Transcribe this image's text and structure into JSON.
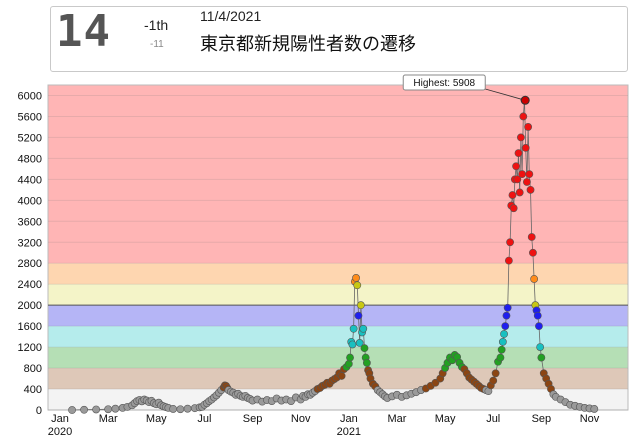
{
  "header": {
    "rank": "14",
    "rank_change": "-1th",
    "count_change": "-11",
    "date": "11/4/2021",
    "title": "東京都新規陽性者数の遷移"
  },
  "chart_data": {
    "type": "scatter",
    "title": "東京都新規陽性者数の遷移",
    "xlabel": "",
    "ylabel": "",
    "ylim": [
      0,
      6200
    ],
    "y_ticks": [
      "0",
      "400",
      "800",
      "1200",
      "1600",
      "2000",
      "2400",
      "2800",
      "3200",
      "3600",
      "4000",
      "4400",
      "4800",
      "5200",
      "5600",
      "6000"
    ],
    "x_ticks": [
      {
        "label": "Jan",
        "sub": "2020",
        "month": 0
      },
      {
        "label": "Mar",
        "sub": "",
        "month": 2
      },
      {
        "label": "May",
        "sub": "",
        "month": 4
      },
      {
        "label": "Jul",
        "sub": "",
        "month": 6
      },
      {
        "label": "Sep",
        "sub": "",
        "month": 8
      },
      {
        "label": "Nov",
        "sub": "",
        "month": 10
      },
      {
        "label": "Jan",
        "sub": "2021",
        "month": 12
      },
      {
        "label": "Mar",
        "sub": "",
        "month": 14
      },
      {
        "label": "May",
        "sub": "",
        "month": 16
      },
      {
        "label": "Jul",
        "sub": "",
        "month": 18
      },
      {
        "label": "Sep",
        "sub": "",
        "month": 20
      },
      {
        "label": "Nov",
        "sub": "",
        "month": 22
      }
    ],
    "bands": [
      {
        "from": 0,
        "to": 400,
        "color": "#f3f3f3"
      },
      {
        "from": 400,
        "to": 800,
        "color": "#dec8b8"
      },
      {
        "from": 800,
        "to": 1200,
        "color": "#b5dfb5"
      },
      {
        "from": 1200,
        "to": 1600,
        "color": "#b5ecec"
      },
      {
        "from": 1600,
        "to": 2000,
        "color": "#b5b5f6"
      },
      {
        "from": 2000,
        "to": 2400,
        "color": "#f4f4c8"
      },
      {
        "from": 2400,
        "to": 2800,
        "color": "#fed6b0"
      },
      {
        "from": 2800,
        "to": 6200,
        "color": "#ffb5b5"
      }
    ],
    "point_colors": [
      {
        "max": 400,
        "color": "#9a9a9a"
      },
      {
        "max": 800,
        "color": "#8b4513"
      },
      {
        "max": 1200,
        "color": "#22a022"
      },
      {
        "max": 1600,
        "color": "#19c0c0"
      },
      {
        "max": 2000,
        "color": "#1f1fee"
      },
      {
        "max": 2400,
        "color": "#c8c814"
      },
      {
        "max": 2800,
        "color": "#ff8c1a"
      },
      {
        "max": 999999,
        "color": "#ee1111"
      }
    ],
    "highlight": {
      "label": "Highest: 5908",
      "month": 19.33,
      "value": 5908
    },
    "series": [
      {
        "values": [
          [
            0.5,
            0
          ],
          [
            1.0,
            5
          ],
          [
            1.5,
            10
          ],
          [
            2.0,
            15
          ],
          [
            2.3,
            25
          ],
          [
            2.6,
            40
          ],
          [
            2.8,
            60
          ],
          [
            3.0,
            90
          ],
          [
            3.1,
            130
          ],
          [
            3.2,
            170
          ],
          [
            3.3,
            190
          ],
          [
            3.4,
            165
          ],
          [
            3.5,
            200
          ],
          [
            3.6,
            180
          ],
          [
            3.7,
            150
          ],
          [
            3.8,
            175
          ],
          [
            3.9,
            130
          ],
          [
            4.0,
            110
          ],
          [
            4.1,
            140
          ],
          [
            4.2,
            90
          ],
          [
            4.3,
            70
          ],
          [
            4.4,
            55
          ],
          [
            4.5,
            40
          ],
          [
            4.7,
            20
          ],
          [
            5.0,
            15
          ],
          [
            5.3,
            25
          ],
          [
            5.6,
            35
          ],
          [
            5.8,
            50
          ],
          [
            5.9,
            60
          ],
          [
            6.0,
            100
          ],
          [
            6.1,
            130
          ],
          [
            6.2,
            170
          ],
          [
            6.3,
            200
          ],
          [
            6.4,
            240
          ],
          [
            6.5,
            280
          ],
          [
            6.6,
            330
          ],
          [
            6.7,
            380
          ],
          [
            6.8,
            430
          ],
          [
            6.85,
            470
          ],
          [
            6.9,
            460
          ],
          [
            6.95,
            420
          ],
          [
            7.0,
            380
          ],
          [
            7.1,
            350
          ],
          [
            7.2,
            330
          ],
          [
            7.3,
            290
          ],
          [
            7.4,
            310
          ],
          [
            7.5,
            270
          ],
          [
            7.6,
            250
          ],
          [
            7.7,
            270
          ],
          [
            7.8,
            230
          ],
          [
            7.9,
            210
          ],
          [
            8.0,
            180
          ],
          [
            8.2,
            200
          ],
          [
            8.4,
            160
          ],
          [
            8.6,
            190
          ],
          [
            8.8,
            170
          ],
          [
            9.0,
            220
          ],
          [
            9.2,
            180
          ],
          [
            9.4,
            200
          ],
          [
            9.6,
            170
          ],
          [
            9.8,
            240
          ],
          [
            10.0,
            200
          ],
          [
            10.1,
            270
          ],
          [
            10.2,
            250
          ],
          [
            10.3,
            300
          ],
          [
            10.4,
            290
          ],
          [
            10.5,
            330
          ],
          [
            10.6,
            360
          ],
          [
            10.7,
            400
          ],
          [
            10.8,
            420
          ],
          [
            10.9,
            460
          ],
          [
            11.0,
            480
          ],
          [
            11.1,
            520
          ],
          [
            11.2,
            500
          ],
          [
            11.3,
            560
          ],
          [
            11.4,
            590
          ],
          [
            11.5,
            620
          ],
          [
            11.6,
            700
          ],
          [
            11.7,
            650
          ],
          [
            11.8,
            780
          ],
          [
            11.9,
            820
          ],
          [
            12.0,
            880
          ],
          [
            12.05,
            1000
          ],
          [
            12.1,
            1300
          ],
          [
            12.15,
            1250
          ],
          [
            12.2,
            1550
          ],
          [
            12.25,
            2450
          ],
          [
            12.3,
            2520
          ],
          [
            12.35,
            2380
          ],
          [
            12.4,
            1800
          ],
          [
            12.45,
            1280
          ],
          [
            12.5,
            2000
          ],
          [
            12.55,
            1480
          ],
          [
            12.6,
            1550
          ],
          [
            12.65,
            1180
          ],
          [
            12.7,
            1000
          ],
          [
            12.75,
            900
          ],
          [
            12.8,
            760
          ],
          [
            12.85,
            700
          ],
          [
            12.9,
            600
          ],
          [
            13.0,
            500
          ],
          [
            13.1,
            450
          ],
          [
            13.2,
            380
          ],
          [
            13.3,
            340
          ],
          [
            13.4,
            300
          ],
          [
            13.5,
            260
          ],
          [
            13.6,
            230
          ],
          [
            13.8,
            260
          ],
          [
            14.0,
            290
          ],
          [
            14.2,
            250
          ],
          [
            14.4,
            280
          ],
          [
            14.6,
            310
          ],
          [
            14.8,
            340
          ],
          [
            15.0,
            380
          ],
          [
            15.2,
            410
          ],
          [
            15.4,
            460
          ],
          [
            15.6,
            520
          ],
          [
            15.8,
            600
          ],
          [
            15.9,
            700
          ],
          [
            16.0,
            800
          ],
          [
            16.1,
            900
          ],
          [
            16.2,
            1000
          ],
          [
            16.3,
            950
          ],
          [
            16.4,
            1050
          ],
          [
            16.5,
            1010
          ],
          [
            16.6,
            900
          ],
          [
            16.7,
            820
          ],
          [
            16.8,
            780
          ],
          [
            16.9,
            700
          ],
          [
            17.0,
            620
          ],
          [
            17.1,
            580
          ],
          [
            17.2,
            540
          ],
          [
            17.3,
            500
          ],
          [
            17.4,
            460
          ],
          [
            17.5,
            420
          ],
          [
            17.6,
            400
          ],
          [
            17.7,
            380
          ],
          [
            17.8,
            360
          ],
          [
            17.9,
            470
          ],
          [
            18.0,
            560
          ],
          [
            18.1,
            700
          ],
          [
            18.2,
            920
          ],
          [
            18.3,
            1000
          ],
          [
            18.35,
            1150
          ],
          [
            18.4,
            1300
          ],
          [
            18.45,
            1450
          ],
          [
            18.5,
            1600
          ],
          [
            18.55,
            1800
          ],
          [
            18.6,
            1950
          ],
          [
            18.65,
            2850
          ],
          [
            18.7,
            3200
          ],
          [
            18.75,
            3900
          ],
          [
            18.8,
            4100
          ],
          [
            18.85,
            3850
          ],
          [
            18.9,
            4400
          ],
          [
            18.95,
            4650
          ],
          [
            19.0,
            4400
          ],
          [
            19.05,
            4900
          ],
          [
            19.1,
            4150
          ],
          [
            19.15,
            5200
          ],
          [
            19.2,
            4500
          ],
          [
            19.25,
            5600
          ],
          [
            19.3,
            5908
          ],
          [
            19.35,
            5000
          ],
          [
            19.4,
            4350
          ],
          [
            19.45,
            5400
          ],
          [
            19.5,
            4500
          ],
          [
            19.55,
            4200
          ],
          [
            19.6,
            3300
          ],
          [
            19.65,
            3000
          ],
          [
            19.7,
            2500
          ],
          [
            19.75,
            2000
          ],
          [
            19.8,
            1900
          ],
          [
            19.85,
            1800
          ],
          [
            19.9,
            1600
          ],
          [
            19.95,
            1200
          ],
          [
            20.0,
            1000
          ],
          [
            20.1,
            700
          ],
          [
            20.2,
            600
          ],
          [
            20.3,
            500
          ],
          [
            20.4,
            400
          ],
          [
            20.5,
            300
          ],
          [
            20.6,
            250
          ],
          [
            20.8,
            200
          ],
          [
            21.0,
            150
          ],
          [
            21.2,
            100
          ],
          [
            21.4,
            80
          ],
          [
            21.6,
            60
          ],
          [
            21.8,
            40
          ],
          [
            22.0,
            30
          ],
          [
            22.2,
            20
          ]
        ]
      }
    ]
  }
}
